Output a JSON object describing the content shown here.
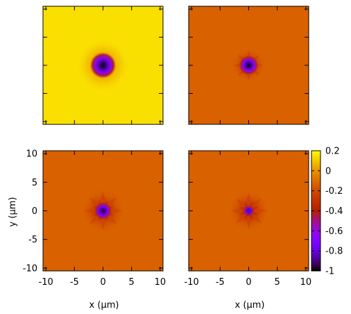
{
  "chart_data": {
    "type": "heatmap",
    "layout": "2x2 grid of heatmap panels sharing one colorbar",
    "x_range": [
      -10.5,
      10.5
    ],
    "y_range": [
      -10.5,
      10.5
    ],
    "x_ticks": [
      -10,
      -5,
      0,
      5,
      10
    ],
    "x_tick_labels": [
      "-10",
      "-5",
      "0",
      "5",
      "10"
    ],
    "y_ticks": [
      -10,
      -5,
      0,
      5,
      10
    ],
    "y_tick_labels": [
      "-10",
      "-5",
      "0",
      "5",
      "10"
    ],
    "xlabel": "x (μm)",
    "ylabel": "y (μm)",
    "colorbar": {
      "range": [
        -1,
        0.2
      ],
      "ticks": [
        0.2,
        0,
        -0.2,
        -0.4,
        -0.6,
        -0.8,
        -1
      ],
      "tick_labels": [
        "0.2",
        "0",
        "-0.2",
        "-0.4",
        "-0.6",
        "-0.8",
        "-1"
      ],
      "colormap": "gnuplot (black-purple-red-orange-yellow)"
    },
    "panels": [
      {
        "position": "top-left",
        "background_value": 0.15,
        "center": [
          0,
          0
        ],
        "center_min_value": -1.0,
        "star_points": 0,
        "core_radius_um": 1.2,
        "halo_radius_um": 3.0,
        "show_x_tick_labels": false,
        "show_y_tick_labels": false
      },
      {
        "position": "top-right",
        "background_value": -0.13,
        "center": [
          0,
          0
        ],
        "center_min_value": -1.0,
        "star_points": 8,
        "core_radius_um": 0.9,
        "halo_radius_um": 2.5,
        "show_x_tick_labels": false,
        "show_y_tick_labels": false
      },
      {
        "position": "bottom-left",
        "background_value": -0.13,
        "center": [
          0,
          0
        ],
        "center_min_value": -0.95,
        "star_points": 8,
        "core_radius_um": 0.8,
        "halo_radius_um": 3.2,
        "show_x_tick_labels": true,
        "show_y_tick_labels": true
      },
      {
        "position": "bottom-right",
        "background_value": -0.13,
        "center": [
          0,
          0
        ],
        "center_min_value": -0.9,
        "star_points": 8,
        "core_radius_um": 0.5,
        "halo_radius_um": 3.0,
        "show_x_tick_labels": true,
        "show_y_tick_labels": false
      }
    ]
  }
}
